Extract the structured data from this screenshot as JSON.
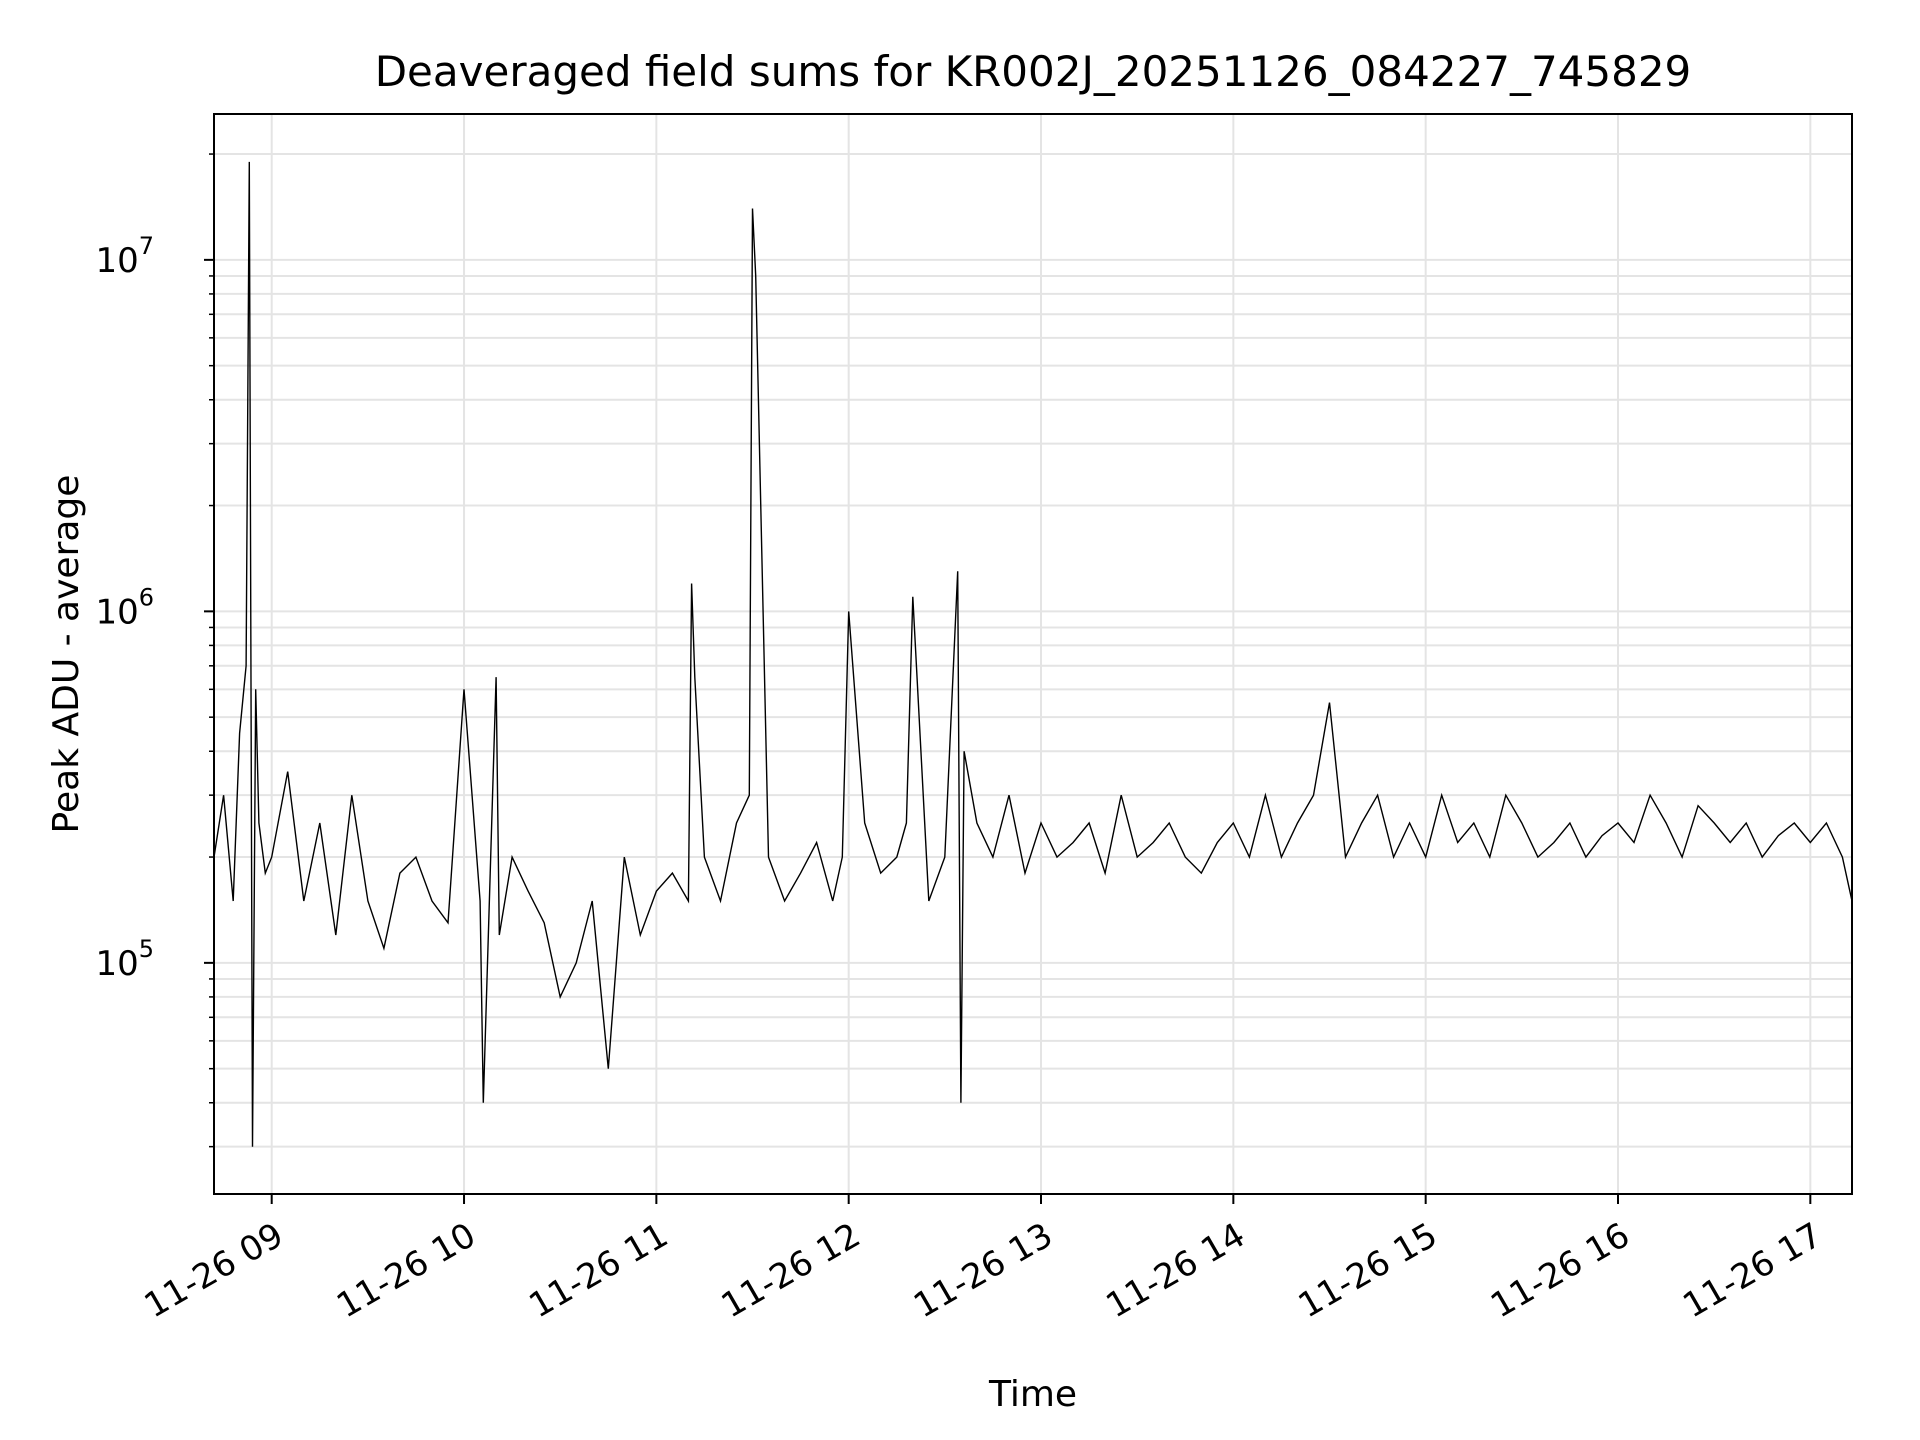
{
  "chart_data": {
    "type": "line",
    "title": "Deaveraged field sums for KR002J_20251126_084227_745829",
    "xlabel": "Time",
    "ylabel": "Peak ADU - average",
    "xlim": [
      "2025-11-26 08:42",
      "2025-11-26 17:13"
    ],
    "ylim": [
      22000,
      26000000
    ],
    "yscale": "log",
    "grid": true,
    "x_ticks": [
      {
        "label": "11-26 09",
        "t": "2025-11-26 09:00"
      },
      {
        "label": "11-26 10",
        "t": "2025-11-26 10:00"
      },
      {
        "label": "11-26 11",
        "t": "2025-11-26 11:00"
      },
      {
        "label": "11-26 12",
        "t": "2025-11-26 12:00"
      },
      {
        "label": "11-26 13",
        "t": "2025-11-26 13:00"
      },
      {
        "label": "11-26 14",
        "t": "2025-11-26 14:00"
      },
      {
        "label": "11-26 15",
        "t": "2025-11-26 15:00"
      },
      {
        "label": "11-26 16",
        "t": "2025-11-26 16:00"
      },
      {
        "label": "11-26 17",
        "t": "2025-11-26 17:00"
      }
    ],
    "y_ticks": [
      {
        "base": "10",
        "exp": "5",
        "value": 100000
      },
      {
        "base": "10",
        "exp": "6",
        "value": 1000000
      },
      {
        "base": "10",
        "exp": "7",
        "value": 10000000
      }
    ],
    "series": [
      {
        "color": "#000000",
        "x": [
          "2025-11-26 08:42",
          "2025-11-26 08:45",
          "2025-11-26 08:48",
          "2025-11-26 08:50",
          "2025-11-26 08:52",
          "2025-11-26 08:53",
          "2025-11-26 08:54",
          "2025-11-26 08:55",
          "2025-11-26 08:56",
          "2025-11-26 08:58",
          "2025-11-26 09:00",
          "2025-11-26 09:05",
          "2025-11-26 09:10",
          "2025-11-26 09:15",
          "2025-11-26 09:20",
          "2025-11-26 09:25",
          "2025-11-26 09:30",
          "2025-11-26 09:35",
          "2025-11-26 09:40",
          "2025-11-26 09:45",
          "2025-11-26 09:50",
          "2025-11-26 09:55",
          "2025-11-26 10:00",
          "2025-11-26 10:05",
          "2025-11-26 10:06",
          "2025-11-26 10:10",
          "2025-11-26 10:11",
          "2025-11-26 10:15",
          "2025-11-26 10:20",
          "2025-11-26 10:25",
          "2025-11-26 10:30",
          "2025-11-26 10:35",
          "2025-11-26 10:40",
          "2025-11-26 10:45",
          "2025-11-26 10:50",
          "2025-11-26 10:55",
          "2025-11-26 11:00",
          "2025-11-26 11:05",
          "2025-11-26 11:10",
          "2025-11-26 11:11",
          "2025-11-26 11:12",
          "2025-11-26 11:15",
          "2025-11-26 11:20",
          "2025-11-26 11:25",
          "2025-11-26 11:29",
          "2025-11-26 11:30",
          "2025-11-26 11:31",
          "2025-11-26 11:35",
          "2025-11-26 11:40",
          "2025-11-26 11:45",
          "2025-11-26 11:50",
          "2025-11-26 11:55",
          "2025-11-26 11:58",
          "2025-11-26 12:00",
          "2025-11-26 12:05",
          "2025-11-26 12:10",
          "2025-11-26 12:15",
          "2025-11-26 12:18",
          "2025-11-26 12:20",
          "2025-11-26 12:25",
          "2025-11-26 12:30",
          "2025-11-26 12:34",
          "2025-11-26 12:35",
          "2025-11-26 12:36",
          "2025-11-26 12:40",
          "2025-11-26 12:45",
          "2025-11-26 12:50",
          "2025-11-26 12:55",
          "2025-11-26 13:00",
          "2025-11-26 13:05",
          "2025-11-26 13:10",
          "2025-11-26 13:15",
          "2025-11-26 13:20",
          "2025-11-26 13:25",
          "2025-11-26 13:30",
          "2025-11-26 13:35",
          "2025-11-26 13:40",
          "2025-11-26 13:45",
          "2025-11-26 13:50",
          "2025-11-26 13:55",
          "2025-11-26 14:00",
          "2025-11-26 14:05",
          "2025-11-26 14:10",
          "2025-11-26 14:15",
          "2025-11-26 14:20",
          "2025-11-26 14:25",
          "2025-11-26 14:30",
          "2025-11-26 14:35",
          "2025-11-26 14:40",
          "2025-11-26 14:45",
          "2025-11-26 14:50",
          "2025-11-26 14:55",
          "2025-11-26 15:00",
          "2025-11-26 15:05",
          "2025-11-26 15:10",
          "2025-11-26 15:15",
          "2025-11-26 15:20",
          "2025-11-26 15:25",
          "2025-11-26 15:30",
          "2025-11-26 15:35",
          "2025-11-26 15:40",
          "2025-11-26 15:45",
          "2025-11-26 15:50",
          "2025-11-26 15:55",
          "2025-11-26 16:00",
          "2025-11-26 16:05",
          "2025-11-26 16:10",
          "2025-11-26 16:15",
          "2025-11-26 16:20",
          "2025-11-26 16:25",
          "2025-11-26 16:30",
          "2025-11-26 16:35",
          "2025-11-26 16:40",
          "2025-11-26 16:45",
          "2025-11-26 16:50",
          "2025-11-26 16:55",
          "2025-11-26 17:00",
          "2025-11-26 17:05",
          "2025-11-26 17:10",
          "2025-11-26 17:13"
        ],
        "y": [
          200000,
          300000,
          150000,
          450000,
          700000,
          19000000,
          30000,
          600000,
          250000,
          180000,
          200000,
          350000,
          150000,
          250000,
          120000,
          300000,
          150000,
          110000,
          180000,
          200000,
          150000,
          130000,
          600000,
          150000,
          40000,
          650000,
          120000,
          200000,
          160000,
          130000,
          80000,
          100000,
          150000,
          50000,
          200000,
          120000,
          160000,
          180000,
          150000,
          1200000,
          650000,
          200000,
          150000,
          250000,
          300000,
          14000000,
          9000000,
          200000,
          150000,
          180000,
          220000,
          150000,
          200000,
          1000000,
          250000,
          180000,
          200000,
          250000,
          1100000,
          150000,
          200000,
          1300000,
          40000,
          400000,
          250000,
          200000,
          300000,
          180000,
          250000,
          200000,
          220000,
          250000,
          180000,
          300000,
          200000,
          220000,
          250000,
          200000,
          180000,
          220000,
          250000,
          200000,
          300000,
          200000,
          250000,
          300000,
          550000,
          200000,
          250000,
          300000,
          200000,
          250000,
          200000,
          300000,
          220000,
          250000,
          200000,
          300000,
          250000,
          200000,
          220000,
          250000,
          200000,
          230000,
          250000,
          220000,
          300000,
          250000,
          200000,
          280000,
          250000,
          220000,
          250000,
          200000,
          230000,
          250000,
          220000,
          250000,
          200000,
          150000
        ]
      }
    ]
  }
}
